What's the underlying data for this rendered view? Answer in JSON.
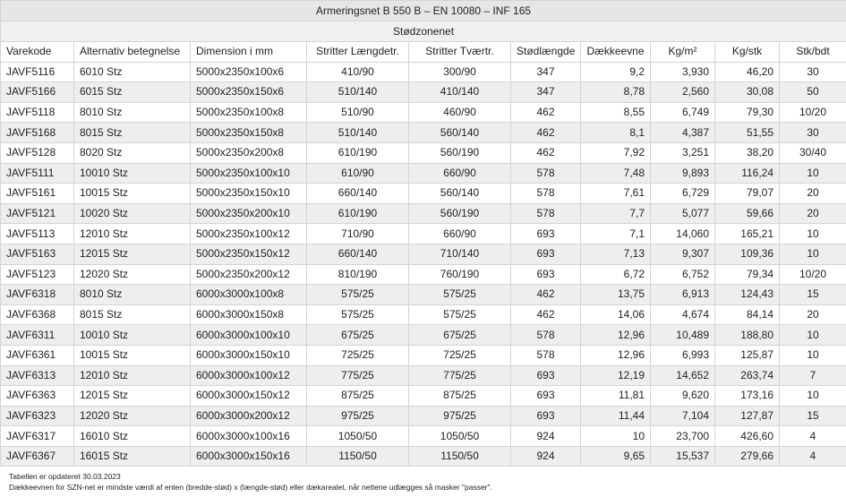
{
  "title": "Armeringsnet B 550 B – EN 10080 – INF 165",
  "subtitle": "Stødzonenet",
  "columns": [
    "Varekode",
    "Alternativ betegnelse",
    "Dimension i mm",
    "Stritter Længdetr.",
    "Stritter Tværtr.",
    "Stødlængde",
    "Dækkeevne",
    "Kg/m²",
    "Kg/stk",
    "Stk/bdt"
  ],
  "rows": [
    [
      "JAVF5116",
      "6010 Stz",
      "5000x2350x100x6",
      "410/90",
      "300/90",
      "347",
      "9,2",
      "3,930",
      "46,20",
      "30"
    ],
    [
      "JAVF5166",
      "6015 Stz",
      "5000x2350x150x6",
      "510/140",
      "410/140",
      "347",
      "8,78",
      "2,560",
      "30,08",
      "50"
    ],
    [
      "JAVF5118",
      "8010 Stz",
      "5000x2350x100x8",
      "510/90",
      "460/90",
      "462",
      "8,55",
      "6,749",
      "79,30",
      "10/20"
    ],
    [
      "JAVF5168",
      "8015 Stz",
      "5000x2350x150x8",
      "510/140",
      "560/140",
      "462",
      "8,1",
      "4,387",
      "51,55",
      "30"
    ],
    [
      "JAVF5128",
      "8020 Stz",
      "5000x2350x200x8",
      "610/190",
      "560/190",
      "462",
      "7,92",
      "3,251",
      "38,20",
      "30/40"
    ],
    [
      "JAVF5111",
      "10010 Stz",
      "5000x2350x100x10",
      "610/90",
      "660/90",
      "578",
      "7,48",
      "9,893",
      "116,24",
      "10"
    ],
    [
      "JAVF5161",
      "10015 Stz",
      "5000x2350x150x10",
      "660/140",
      "560/140",
      "578",
      "7,61",
      "6,729",
      "79,07",
      "20"
    ],
    [
      "JAVF5121",
      "10020 Stz",
      "5000x2350x200x10",
      "610/190",
      "560/190",
      "578",
      "7,7",
      "5,077",
      "59,66",
      "20"
    ],
    [
      "JAVF5113",
      "12010 Stz",
      "5000x2350x100x12",
      "710/90",
      "660/90",
      "693",
      "7,1",
      "14,060",
      "165,21",
      "10"
    ],
    [
      "JAVF5163",
      "12015 Stz",
      "5000x2350x150x12",
      "660/140",
      "710/140",
      "693",
      "7,13",
      "9,307",
      "109,36",
      "10"
    ],
    [
      "JAVF5123",
      "12020 Stz",
      "5000x2350x200x12",
      "810/190",
      "760/190",
      "693",
      "6,72",
      "6,752",
      "79,34",
      "10/20"
    ],
    [
      "JAVF6318",
      "8010 Stz",
      "6000x3000x100x8",
      "575/25",
      "575/25",
      "462",
      "13,75",
      "6,913",
      "124,43",
      "15"
    ],
    [
      "JAVF6368",
      "8015 Stz",
      "6000x3000x150x8",
      "575/25",
      "575/25",
      "462",
      "14,06",
      "4,674",
      "84,14",
      "20"
    ],
    [
      "JAVF6311",
      "10010 Stz",
      "6000x3000x100x10",
      "675/25",
      "675/25",
      "578",
      "12,96",
      "10,489",
      "188,80",
      "10"
    ],
    [
      "JAVF6361",
      "10015 Stz",
      "6000x3000x150x10",
      "725/25",
      "725/25",
      "578",
      "12,96",
      "6,993",
      "125,87",
      "10"
    ],
    [
      "JAVF6313",
      "12010 Stz",
      "6000x3000x100x12",
      "775/25",
      "775/25",
      "693",
      "12,19",
      "14,652",
      "263,74",
      "7"
    ],
    [
      "JAVF6363",
      "12015 Stz",
      "6000x3000x150x12",
      "875/25",
      "875/25",
      "693",
      "11,81",
      "9,620",
      "173,16",
      "10"
    ],
    [
      "JAVF6323",
      "12020 Stz",
      "6000x3000x200x12",
      "975/25",
      "975/25",
      "693",
      "11,44",
      "7,104",
      "127,87",
      "15"
    ],
    [
      "JAVF6317",
      "16010 Stz",
      "6000x3000x100x16",
      "1050/50",
      "1050/50",
      "924",
      "10",
      "23,700",
      "426,60",
      "4"
    ],
    [
      "JAVF6367",
      "16015 Stz",
      "6000x3000x150x16",
      "1150/50",
      "1150/50",
      "924",
      "9,65",
      "15,537",
      "279,66",
      "4"
    ]
  ],
  "notes": [
    "Tabellen er opdateret 30.03.2023",
    "Dækkeevnen for SZN-net er mindste værdi af enten (bredde-stød) x (længde-stød) eller dækarealet, når nettene udlægges så masker \"passer\"."
  ]
}
